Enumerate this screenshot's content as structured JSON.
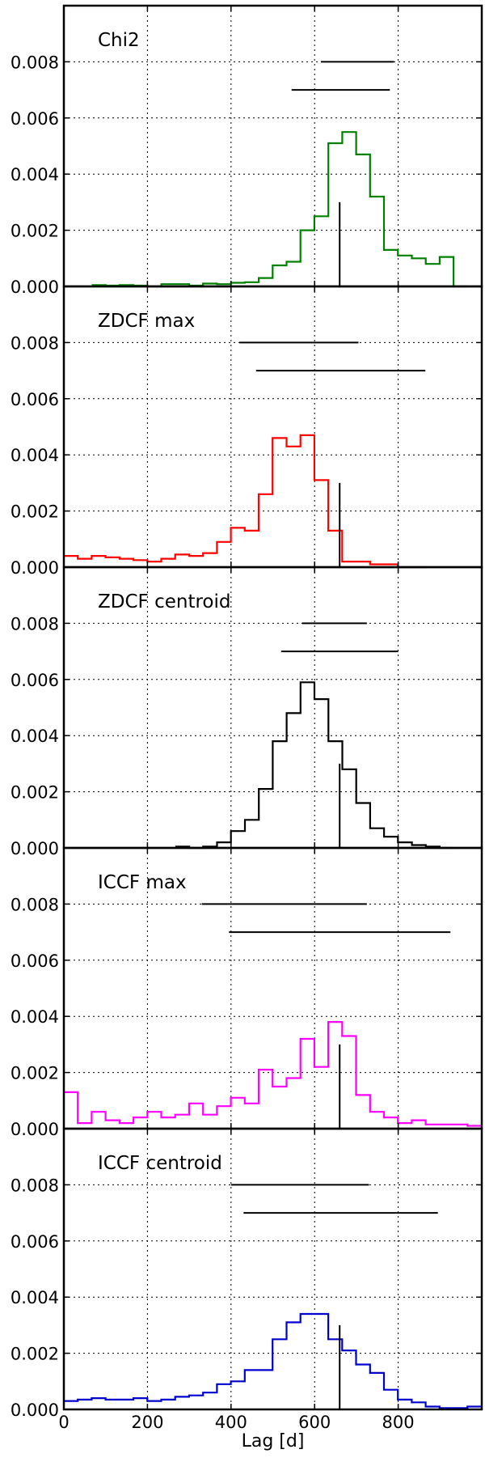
{
  "chart_data": {
    "type": "histogram-panels",
    "xlabel": "Lag [d]",
    "xlim": [
      0,
      1000
    ],
    "xticks": [
      0,
      200,
      400,
      600,
      800
    ],
    "ylim": [
      0,
      0.01
    ],
    "yticks": [
      "0.000",
      "0.002",
      "0.004",
      "0.006",
      "0.008"
    ],
    "ytick_values": [
      0,
      0.002,
      0.004,
      0.006,
      0.008
    ],
    "grid": true,
    "bin_width": 33.3,
    "reference_line": {
      "x": 660,
      "y_top": 0.003
    },
    "panels": [
      {
        "name": "Chi2",
        "color": "#008000",
        "x_start": 66.7,
        "values": [
          5e-05,
          3e-05,
          5e-05,
          3e-05,
          0,
          8e-05,
          8e-05,
          3e-05,
          0.0001,
          8e-05,
          0.00013,
          0.00015,
          0.0003,
          0.00075,
          0.00088,
          0.002,
          0.0025,
          0.0051,
          0.0055,
          0.0047,
          0.0032,
          0.0013,
          0.0011,
          0.001,
          0.0008,
          0.00105,
          0
        ],
        "intervals": [
          [
            615,
            790
          ],
          [
            545,
            780
          ]
        ]
      },
      {
        "name": "ZDCF max",
        "color": "#ff0000",
        "x_start": 0,
        "values": [
          0.0004,
          0.0003,
          0.0004,
          0.00035,
          0.0003,
          0.00025,
          0.0002,
          0.0003,
          0.00045,
          0.0004,
          0.0005,
          0.0009,
          0.0014,
          0.0013,
          0.0026,
          0.0046,
          0.0043,
          0.0047,
          0.0031,
          0.0013,
          0.0002,
          0.0002,
          0.0001,
          0.0001,
          0,
          0
        ],
        "intervals": [
          [
            420,
            705
          ],
          [
            460,
            865
          ]
        ]
      },
      {
        "name": "ZDCF centroid",
        "color": "#000000",
        "x_start": 266.7,
        "values": [
          5e-05,
          0,
          5e-05,
          0.0002,
          0.0006,
          0.001,
          0.0021,
          0.0038,
          0.0048,
          0.0059,
          0.0053,
          0.0038,
          0.0028,
          0.0016,
          0.0007,
          0.0004,
          0.0002,
          0.0001,
          5e-05,
          0
        ],
        "intervals": [
          [
            570,
            725
          ],
          [
            520,
            800
          ]
        ]
      },
      {
        "name": "ICCF max",
        "color": "#ff00ff",
        "x_start": 0,
        "values": [
          0.0013,
          0.0002,
          0.0006,
          0.0003,
          0.0002,
          0.0004,
          0.0006,
          0.0004,
          0.0005,
          0.0009,
          0.0005,
          0.0008,
          0.0011,
          0.0009,
          0.0021,
          0.0015,
          0.0018,
          0.0032,
          0.0022,
          0.0038,
          0.0033,
          0.0012,
          0.0006,
          0.0004,
          0.0002,
          0.0003,
          0.00015,
          0.00015,
          0.00015,
          0.0001
        ],
        "intervals": [
          [
            330,
            725
          ],
          [
            395,
            925
          ]
        ]
      },
      {
        "name": "ICCF centroid",
        "color": "#0000cd",
        "x_start": 0,
        "values": [
          0.0003,
          0.00035,
          0.0004,
          0.00035,
          0.00035,
          0.0004,
          0.0003,
          0.00035,
          0.00045,
          0.0005,
          0.0006,
          0.0009,
          0.001,
          0.0014,
          0.0014,
          0.0025,
          0.0031,
          0.0034,
          0.0034,
          0.0025,
          0.0021,
          0.0016,
          0.0013,
          0.0007,
          0.00035,
          0.00025,
          0.0001,
          5e-05,
          5e-05,
          0.0001
        ],
        "intervals": [
          [
            400,
            730
          ],
          [
            430,
            895
          ]
        ]
      }
    ]
  }
}
